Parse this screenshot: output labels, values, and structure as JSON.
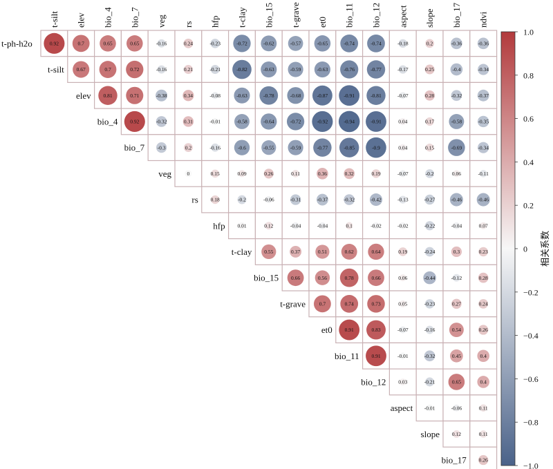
{
  "chart_data": {
    "type": "heatmap",
    "variables": [
      "t-ph-h2o",
      "t-silt",
      "elev",
      "bio_4",
      "bio_7",
      "veg",
      "rs",
      "hfp",
      "t-clay",
      "bio_15",
      "t-grave",
      "et0",
      "bio_11",
      "bio_12",
      "aspect",
      "slope",
      "bio_17",
      "ndvi"
    ],
    "columns": [
      "t-silt",
      "elev",
      "bio_4",
      "bio_7",
      "veg",
      "rs",
      "hfp",
      "t-clay",
      "bio_15",
      "t-grave",
      "et0",
      "bio_11",
      "bio_12",
      "aspect",
      "slope",
      "bio_17",
      "ndvi"
    ],
    "rows": [
      "t-ph-h2o",
      "t-silt",
      "elev",
      "bio_4",
      "bio_7",
      "veg",
      "rs",
      "hfp",
      "t-clay",
      "bio_15",
      "t-grave",
      "et0",
      "bio_11",
      "bio_12",
      "aspect",
      "slope",
      "bio_17"
    ],
    "values": [
      [
        0.92,
        0.7,
        0.65,
        0.65,
        -0.16,
        0.24,
        -0.23,
        -0.72,
        -0.62,
        -0.57,
        -0.65,
        -0.74,
        -0.74,
        -0.18,
        0.2,
        -0.36,
        -0.36
      ],
      [
        0.67,
        0.7,
        0.72,
        -0.16,
        0.21,
        -0.21,
        -0.82,
        -0.63,
        -0.59,
        -0.63,
        -0.76,
        -0.77,
        -0.17,
        0.25,
        -0.4,
        -0.34
      ],
      [
        0.81,
        0.71,
        -0.38,
        0.34,
        -0.08,
        -0.63,
        -0.78,
        -0.68,
        -0.87,
        -0.91,
        -0.81,
        -0.07,
        0.28,
        -0.32,
        -0.37
      ],
      [
        0.92,
        -0.32,
        0.31,
        -0.01,
        -0.58,
        -0.64,
        -0.72,
        -0.92,
        -0.94,
        -0.91,
        0.04,
        0.17,
        -0.58,
        -0.35
      ],
      [
        -0.3,
        0.2,
        -0.16,
        -0.6,
        -0.55,
        -0.59,
        -0.77,
        -0.85,
        -0.9,
        0.04,
        0.15,
        -0.69,
        -0.34
      ],
      [
        0,
        0.15,
        0.09,
        0.26,
        0.11,
        0.36,
        0.32,
        0.19,
        -0.07,
        -0.2,
        0.06,
        -0.11
      ],
      [
        0.18,
        -0.2,
        -0.06,
        -0.31,
        -0.37,
        -0.32,
        -0.42,
        -0.13,
        -0.27,
        -0.46,
        -0.46
      ],
      [
        0.01,
        0.12,
        -0.04,
        -0.04,
        0.1,
        -0.02,
        -0.02,
        -0.22,
        -0.04,
        0.07
      ],
      [
        0.55,
        0.37,
        0.51,
        0.62,
        0.64,
        0.19,
        -0.24,
        0.3,
        0.23
      ],
      [
        0.66,
        0.56,
        0.78,
        0.66,
        0.06,
        -0.44,
        -0.12,
        0.28
      ],
      [
        0.7,
        0.74,
        0.73,
        0.05,
        -0.23,
        0.27,
        0.24
      ],
      [
        0.91,
        0.83,
        -0.07,
        -0.16,
        0.54,
        0.26
      ],
      [
        0.91,
        -0.01,
        -0.32,
        0.45,
        0.4
      ],
      [
        0.03,
        -0.21,
        0.65,
        0.4
      ],
      [
        -0.01,
        -0.06,
        0.11
      ],
      [
        0.12,
        0.11
      ],
      [
        0.26
      ]
    ],
    "colorbar": {
      "label": "相关系数",
      "range": [
        -1.0,
        1.0
      ],
      "ticks": [
        "1.0",
        "0.8",
        "0.6",
        "0.4",
        "0.2",
        "0",
        "−0.2",
        "−0.4",
        "−0.6",
        "−0.8",
        "−1.0"
      ],
      "colors": {
        "negative": "#4a6289",
        "neutral": "#f7f7f7",
        "positive": "#b23a3c"
      }
    }
  }
}
